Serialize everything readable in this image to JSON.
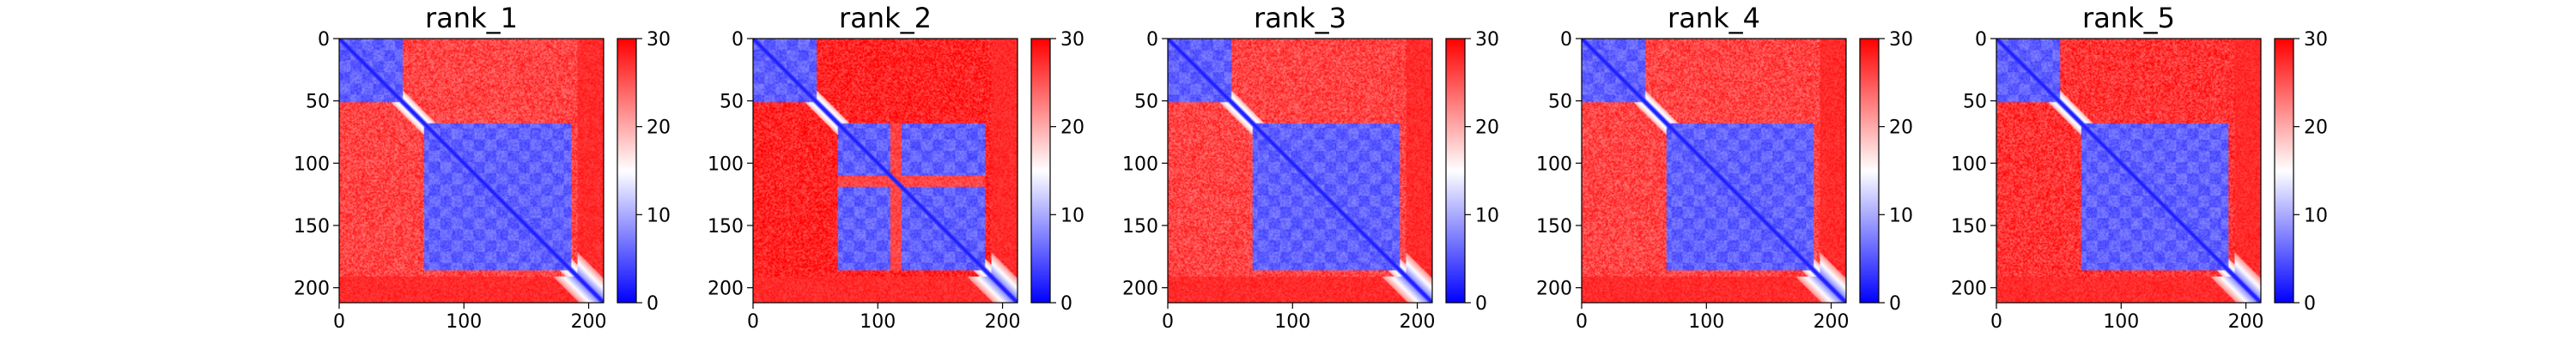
{
  "colors": {
    "low": "#0000ff",
    "mid": "#ffffff",
    "high": "#ff0000",
    "axis": "#000000"
  },
  "chart_data": [
    {
      "type": "heatmap",
      "title": "rank_1",
      "x_ticks": [
        "0",
        "100",
        "200"
      ],
      "y_ticks": [
        "0",
        "50",
        "100",
        "150",
        "200"
      ],
      "colorbar_ticks": [
        "0",
        "10",
        "20",
        "30"
      ],
      "xlim": [
        0,
        212
      ],
      "ylim": [
        212,
        0
      ],
      "color_range": [
        0,
        30
      ],
      "colormap": "bwr",
      "structure": {
        "length": 212,
        "domains": [
          [
            0,
            50
          ],
          [
            68,
            185
          ]
        ],
        "gaps": [],
        "inter_domain_value": 27
      }
    },
    {
      "type": "heatmap",
      "title": "rank_2",
      "x_ticks": [
        "0",
        "100",
        "200"
      ],
      "y_ticks": [
        "0",
        "50",
        "100",
        "150",
        "200"
      ],
      "colorbar_ticks": [
        "0",
        "10",
        "20",
        "30"
      ],
      "xlim": [
        0,
        212
      ],
      "ylim": [
        212,
        0
      ],
      "color_range": [
        0,
        30
      ],
      "colormap": "bwr",
      "structure": {
        "length": 212,
        "domains": [
          [
            0,
            50
          ],
          [
            68,
            185
          ]
        ],
        "gaps": [
          [
            110,
            118
          ]
        ],
        "inter_domain_value": 29
      }
    },
    {
      "type": "heatmap",
      "title": "rank_3",
      "x_ticks": [
        "0",
        "100",
        "200"
      ],
      "y_ticks": [
        "0",
        "50",
        "100",
        "150",
        "200"
      ],
      "colorbar_ticks": [
        "0",
        "10",
        "20",
        "30"
      ],
      "xlim": [
        0,
        212
      ],
      "ylim": [
        212,
        0
      ],
      "color_range": [
        0,
        30
      ],
      "colormap": "bwr",
      "structure": {
        "length": 212,
        "domains": [
          [
            0,
            50
          ],
          [
            68,
            185
          ]
        ],
        "gaps": [],
        "inter_domain_value": 27
      }
    },
    {
      "type": "heatmap",
      "title": "rank_4",
      "x_ticks": [
        "0",
        "100",
        "200"
      ],
      "y_ticks": [
        "0",
        "50",
        "100",
        "150",
        "200"
      ],
      "colorbar_ticks": [
        "0",
        "10",
        "20",
        "30"
      ],
      "xlim": [
        0,
        212
      ],
      "ylim": [
        212,
        0
      ],
      "color_range": [
        0,
        30
      ],
      "colormap": "bwr",
      "structure": {
        "length": 212,
        "domains": [
          [
            0,
            50
          ],
          [
            68,
            185
          ]
        ],
        "gaps": [],
        "inter_domain_value": 27
      }
    },
    {
      "type": "heatmap",
      "title": "rank_5",
      "x_ticks": [
        "0",
        "100",
        "200"
      ],
      "y_ticks": [
        "0",
        "50",
        "100",
        "150",
        "200"
      ],
      "colorbar_ticks": [
        "0",
        "10",
        "20",
        "30"
      ],
      "xlim": [
        0,
        212
      ],
      "ylim": [
        212,
        0
      ],
      "color_range": [
        0,
        30
      ],
      "colormap": "bwr",
      "structure": {
        "length": 212,
        "domains": [
          [
            0,
            50
          ],
          [
            68,
            185
          ]
        ],
        "gaps": [],
        "inter_domain_value": 28
      }
    }
  ]
}
